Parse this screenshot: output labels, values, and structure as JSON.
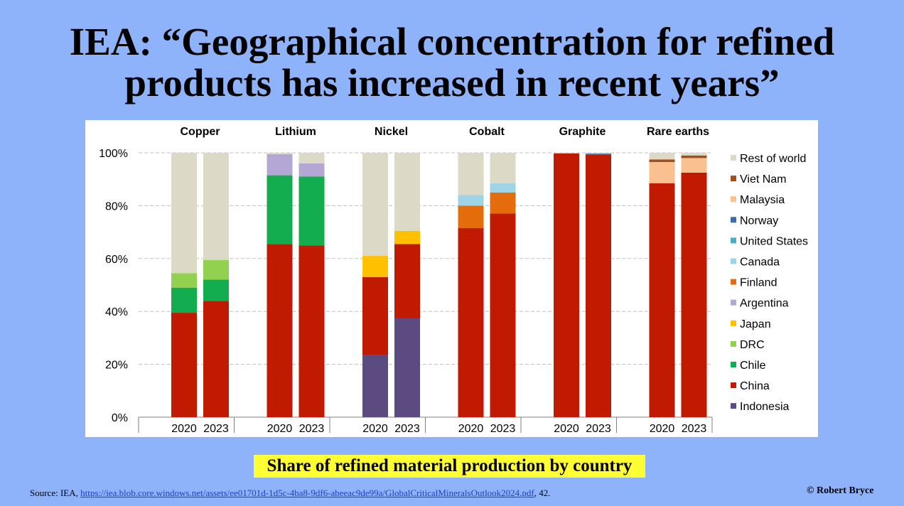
{
  "title": {
    "line1": "IEA: “Geographical concentration for refined",
    "line2": "products has increased in recent years”"
  },
  "subtitle": "Share of refined material production by country",
  "source": {
    "prefix": "Source: IEA, ",
    "url": "https://iea.blob.core.windows.net/assets/ee01701d-1d5c-4ba8-9df6-abeeac9de99a/GlobalCriticalMineralsOutlook2024.pdf",
    "suffix": ", 42."
  },
  "credit": "© Robert Bryce",
  "chart_data": {
    "type": "bar",
    "stacked": true,
    "ylim": [
      0,
      100
    ],
    "yticks": [
      0,
      20,
      40,
      60,
      80,
      100
    ],
    "ytick_labels": [
      "0%",
      "20%",
      "40%",
      "60%",
      "80%",
      "100%"
    ],
    "grid": true,
    "legend_position": "right",
    "groups": [
      "Copper",
      "Lithium",
      "Nickel",
      "Cobalt",
      "Graphite",
      "Rare earths"
    ],
    "years": [
      "2020",
      "2023"
    ],
    "legend": [
      "Rest of world",
      "Viet Nam",
      "Malaysia",
      "Norway",
      "United States",
      "Canada",
      "Finland",
      "Argentina",
      "Japan",
      "DRC",
      "Chile",
      "China",
      "Indonesia"
    ],
    "colors": {
      "Indonesia": "#5b4b80",
      "China": "#c01a00",
      "Chile": "#13ad4f",
      "DRC": "#92d050",
      "Japan": "#ffc000",
      "Argentina": "#b4a7d6",
      "Finland": "#e46c0a",
      "Canada": "#9ed4e6",
      "United States": "#4bacc6",
      "Norway": "#3a6ea5",
      "Malaysia": "#fac090",
      "Viet Nam": "#a0501e",
      "Rest of world": "#dcdac6"
    },
    "bars": [
      {
        "group": "Copper",
        "year": "2020",
        "segments": [
          {
            "name": "China",
            "value": 39.5
          },
          {
            "name": "Chile",
            "value": 9.5
          },
          {
            "name": "DRC",
            "value": 5.5
          },
          {
            "name": "Rest of world",
            "value": 45.5
          }
        ]
      },
      {
        "group": "Copper",
        "year": "2023",
        "segments": [
          {
            "name": "China",
            "value": 44
          },
          {
            "name": "Chile",
            "value": 8
          },
          {
            "name": "DRC",
            "value": 7.5
          },
          {
            "name": "Rest of world",
            "value": 40.5
          }
        ]
      },
      {
        "group": "Lithium",
        "year": "2020",
        "segments": [
          {
            "name": "China",
            "value": 65.5
          },
          {
            "name": "Chile",
            "value": 26
          },
          {
            "name": "Argentina",
            "value": 8
          },
          {
            "name": "Rest of world",
            "value": 0.5
          }
        ]
      },
      {
        "group": "Lithium",
        "year": "2023",
        "segments": [
          {
            "name": "China",
            "value": 65
          },
          {
            "name": "Chile",
            "value": 26
          },
          {
            "name": "Argentina",
            "value": 5
          },
          {
            "name": "Rest of world",
            "value": 4
          }
        ]
      },
      {
        "group": "Nickel",
        "year": "2020",
        "segments": [
          {
            "name": "Indonesia",
            "value": 23.5
          },
          {
            "name": "China",
            "value": 29.5
          },
          {
            "name": "Japan",
            "value": 8
          },
          {
            "name": "Rest of world",
            "value": 39
          }
        ]
      },
      {
        "group": "Nickel",
        "year": "2023",
        "segments": [
          {
            "name": "Indonesia",
            "value": 37.5
          },
          {
            "name": "China",
            "value": 28
          },
          {
            "name": "Japan",
            "value": 5
          },
          {
            "name": "Rest of world",
            "value": 29.5
          }
        ]
      },
      {
        "group": "Cobalt",
        "year": "2020",
        "segments": [
          {
            "name": "China",
            "value": 71.5
          },
          {
            "name": "Finland",
            "value": 8.5
          },
          {
            "name": "Canada",
            "value": 4
          },
          {
            "name": "Rest of world",
            "value": 16
          }
        ]
      },
      {
        "group": "Cobalt",
        "year": "2023",
        "segments": [
          {
            "name": "China",
            "value": 77
          },
          {
            "name": "Finland",
            "value": 8
          },
          {
            "name": "Canada",
            "value": 3.5
          },
          {
            "name": "Rest of world",
            "value": 11.5
          }
        ]
      },
      {
        "group": "Graphite",
        "year": "2020",
        "segments": [
          {
            "name": "China",
            "value": 99.8
          },
          {
            "name": "Rest of world",
            "value": 0.2
          }
        ]
      },
      {
        "group": "Graphite",
        "year": "2023",
        "segments": [
          {
            "name": "China",
            "value": 99.3
          },
          {
            "name": "Norway",
            "value": 0.4
          },
          {
            "name": "Rest of world",
            "value": 0.3
          }
        ]
      },
      {
        "group": "Rare earths",
        "year": "2020",
        "segments": [
          {
            "name": "China",
            "value": 88.5
          },
          {
            "name": "Malaysia",
            "value": 8
          },
          {
            "name": "Viet Nam",
            "value": 1
          },
          {
            "name": "Rest of world",
            "value": 2.5
          }
        ]
      },
      {
        "group": "Rare earths",
        "year": "2023",
        "segments": [
          {
            "name": "China",
            "value": 92.5
          },
          {
            "name": "Malaysia",
            "value": 5.5
          },
          {
            "name": "Viet Nam",
            "value": 1
          },
          {
            "name": "Rest of world",
            "value": 1
          }
        ]
      }
    ]
  }
}
